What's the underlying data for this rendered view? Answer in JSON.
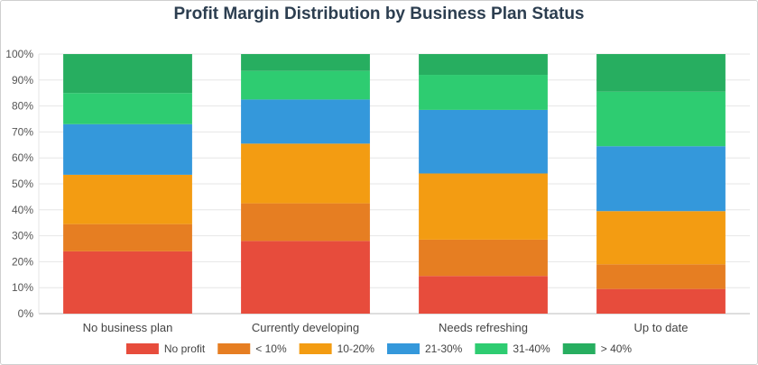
{
  "chart_data": {
    "type": "bar",
    "stacked": true,
    "title": "Profit Margin Distribution by Business Plan Status",
    "xlabel": "",
    "ylabel": "",
    "categories": [
      "No business plan",
      "Currently developing",
      "Needs refreshing",
      "Up to date"
    ],
    "ylim": [
      0,
      100
    ],
    "y_ticks": [
      "0%",
      "10%",
      "20%",
      "30%",
      "40%",
      "50%",
      "60%",
      "70%",
      "80%",
      "90%",
      "100%"
    ],
    "grid": true,
    "legend_position": "bottom",
    "series": [
      {
        "name": "No profit",
        "color": "#e74c3c",
        "values": [
          24,
          28,
          14.5,
          9.5
        ]
      },
      {
        "name": "< 10%",
        "color": "#e67e22",
        "values": [
          10.5,
          14.5,
          14,
          9.5
        ]
      },
      {
        "name": "10-20%",
        "color": "#f39c12",
        "values": [
          19,
          23,
          25.5,
          20.5
        ]
      },
      {
        "name": "21-30%",
        "color": "#3498db",
        "values": [
          19.5,
          17,
          24.5,
          25
        ]
      },
      {
        "name": "31-40%",
        "color": "#2ecc71",
        "values": [
          12,
          11,
          13.5,
          21
        ]
      },
      {
        "name": "> 40%",
        "color": "#27ae60",
        "values": [
          15,
          6.5,
          8,
          14.5
        ]
      }
    ]
  }
}
